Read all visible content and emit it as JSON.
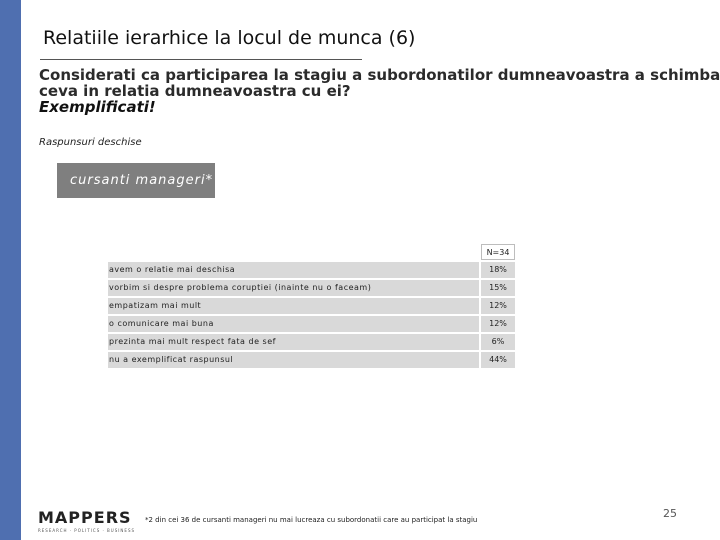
{
  "slide": {
    "title": "Relatiile ierarhice la locul de munca (6)",
    "question_line1": "Considerati ca participarea la stagiu a subordonatilor dumneavoastra a schimbat",
    "question_line2": "ceva in relatia dumneavoastra cu ei?",
    "question_line3": "Exemplificati!",
    "subtitle": "Raspunsuri deschise",
    "badge": "cursanti manageri*",
    "n_label": "N=34",
    "rows": [
      {
        "label": "avem o relatie mai deschisa",
        "value": "18%"
      },
      {
        "label": "vorbim si despre problema coruptiei (inainte nu o faceam)",
        "value": "15%"
      },
      {
        "label": "empatizam mai mult",
        "value": "12%"
      },
      {
        "label": "o comunicare mai buna",
        "value": "12%"
      },
      {
        "label": "prezinta mai mult respect fata de sef",
        "value": "6%"
      },
      {
        "label": "nu a exemplificat raspunsul",
        "value": "44%"
      }
    ],
    "logo_word": "MAPPERS",
    "logo_tagline": "RESEARCH · POLITICS · BUSINESS",
    "footnote": "*2 din cei 36 de cursanti manageri nu mai lucreaza cu subordonatii care au participat la stagiu",
    "page_number": "25"
  },
  "colors": {
    "side_bar": "#4f6fb0",
    "badge_bg": "#7f7f7f",
    "row_bg": "#d9d9d9"
  }
}
